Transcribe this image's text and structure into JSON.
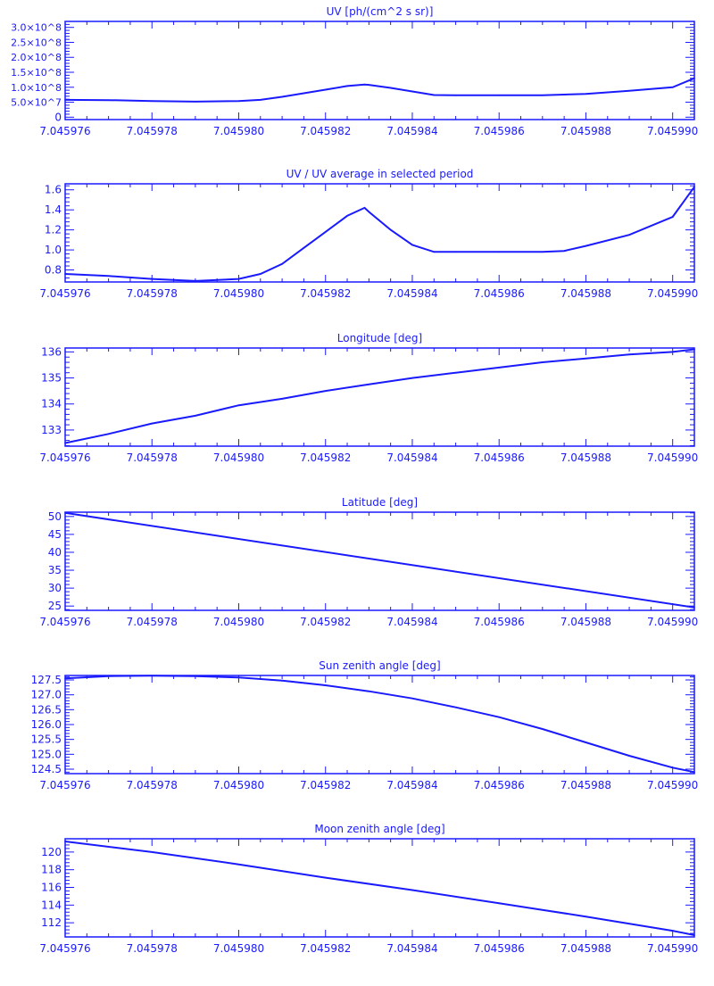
{
  "chart_data": [
    {
      "type": "line",
      "title": "UV [ph/(cm^2 s sr)]",
      "ylim": [
        -8000000,
        320000000
      ],
      "yticks": [
        0,
        50000000,
        100000000,
        150000000,
        200000000,
        250000000,
        300000000
      ],
      "yticklabels": [
        "0",
        "5.0×10^7",
        "1.0×10^8",
        "1.5×10^8",
        "2.0×10^8",
        "2.5×10^8",
        "3.0×10^8"
      ],
      "x": [
        7.045976,
        7.045977,
        7.045978,
        7.045979,
        7.04598,
        7.0459805,
        7.045981,
        7.0459815,
        7.045982,
        7.0459825,
        7.0459829,
        7.045983,
        7.0459835,
        7.045984,
        7.0459845,
        7.045985,
        7.045986,
        7.045987,
        7.045988,
        7.045989,
        7.04599,
        7.0459905
      ],
      "y": [
        58000000,
        57000000,
        54000000,
        52000000,
        54000000,
        58000000,
        68000000,
        80000000,
        92000000,
        104000000,
        109000000,
        108000000,
        98000000,
        86000000,
        74000000,
        73000000,
        73000000,
        73000000,
        78000000,
        88000000,
        100000000,
        130000000
      ]
    },
    {
      "type": "line",
      "title": "UV / UV average in selected period",
      "ylim": [
        0.68,
        1.66
      ],
      "yticks": [
        0.8,
        1.0,
        1.2,
        1.4,
        1.6
      ],
      "yticklabels": [
        "0.8",
        "1.0",
        "1.2",
        "1.4",
        "1.6"
      ],
      "x": [
        7.045976,
        7.045977,
        7.045978,
        7.045979,
        7.04598,
        7.0459805,
        7.045981,
        7.0459815,
        7.045982,
        7.0459825,
        7.0459829,
        7.045983,
        7.0459835,
        7.045984,
        7.0459845,
        7.045985,
        7.045986,
        7.045987,
        7.0459875,
        7.045988,
        7.045989,
        7.04599,
        7.0459905
      ],
      "y": [
        0.76,
        0.74,
        0.71,
        0.69,
        0.71,
        0.76,
        0.86,
        1.02,
        1.18,
        1.34,
        1.42,
        1.38,
        1.2,
        1.05,
        0.98,
        0.98,
        0.98,
        0.98,
        0.99,
        1.04,
        1.15,
        1.33,
        1.63
      ]
    },
    {
      "type": "line",
      "title": "Longitude [deg]",
      "ylim": [
        132.38,
        136.15
      ],
      "yticks": [
        133,
        134,
        135,
        136
      ],
      "yticklabels": [
        "133",
        "134",
        "135",
        "136"
      ],
      "x": [
        7.045976,
        7.045977,
        7.045978,
        7.045979,
        7.04598,
        7.045981,
        7.045982,
        7.045983,
        7.045984,
        7.045985,
        7.045986,
        7.045987,
        7.045988,
        7.045989,
        7.04599,
        7.0459905
      ],
      "y": [
        132.5,
        132.85,
        133.25,
        133.55,
        133.95,
        134.2,
        134.5,
        134.75,
        135.0,
        135.2,
        135.4,
        135.6,
        135.75,
        135.9,
        136.0,
        136.1
      ]
    },
    {
      "type": "line",
      "title": "Latitude [deg]",
      "ylim": [
        23.8,
        51.2
      ],
      "yticks": [
        25,
        30,
        35,
        40,
        45,
        50
      ],
      "yticklabels": [
        "25",
        "30",
        "35",
        "40",
        "45",
        "50"
      ],
      "x": [
        7.045976,
        7.0459905
      ],
      "y": [
        51.0,
        24.6
      ]
    },
    {
      "type": "line",
      "title": "Sun zenith angle [deg]",
      "ylim": [
        124.35,
        127.65
      ],
      "yticks": [
        124.5,
        125.0,
        125.5,
        126.0,
        126.5,
        127.0,
        127.5
      ],
      "yticklabels": [
        "124.5",
        "125.0",
        "125.5",
        "126.0",
        "126.5",
        "127.0",
        "127.5"
      ],
      "x": [
        7.045976,
        7.045977,
        7.045978,
        7.045979,
        7.04598,
        7.045981,
        7.045982,
        7.045983,
        7.045984,
        7.045985,
        7.045986,
        7.045987,
        7.045988,
        7.045989,
        7.04599,
        7.0459905
      ],
      "y": [
        127.55,
        127.63,
        127.64,
        127.63,
        127.58,
        127.48,
        127.32,
        127.12,
        126.88,
        126.58,
        126.25,
        125.85,
        125.4,
        124.95,
        124.55,
        124.4
      ]
    },
    {
      "type": "line",
      "title": "Moon zenith angle [deg]",
      "ylim": [
        110.4,
        121.5
      ],
      "yticks": [
        112,
        114,
        116,
        118,
        120
      ],
      "yticklabels": [
        "112",
        "114",
        "116",
        "118",
        "120"
      ],
      "x": [
        7.045976,
        7.045978,
        7.04598,
        7.045982,
        7.045984,
        7.045986,
        7.045988,
        7.04599,
        7.0459905
      ],
      "y": [
        121.2,
        120.0,
        118.6,
        117.1,
        115.7,
        114.2,
        112.7,
        111.1,
        110.6
      ]
    }
  ],
  "xlim": [
    7.045976,
    7.0459905
  ],
  "xticks": [
    7.045976,
    7.045978,
    7.04598,
    7.045982,
    7.045984,
    7.045986,
    7.045988,
    7.04599
  ],
  "xticklabels": [
    "7.045976",
    "7.045978",
    "7.045980",
    "7.045982",
    "7.045984",
    "7.045986",
    "7.045988",
    "7.045990"
  ],
  "color": "#1a1aff"
}
